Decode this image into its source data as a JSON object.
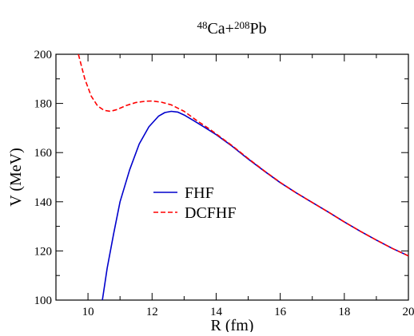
{
  "chart_data": {
    "type": "line",
    "title": {
      "parts": [
        {
          "text": "48",
          "sup": true
        },
        {
          "text": "Ca+",
          "sup": false
        },
        {
          "text": "208",
          "sup": true
        },
        {
          "text": "Pb",
          "sup": false
        }
      ]
    },
    "xlabel": "R (fm)",
    "ylabel": "V (MeV)",
    "xlim": [
      9,
      20
    ],
    "ylim": [
      100,
      200
    ],
    "x_ticks": [
      10,
      12,
      14,
      16,
      18,
      20
    ],
    "x_tick_labels": [
      "10",
      "12",
      "14",
      "16",
      "18",
      "20"
    ],
    "x_minor_ticks": [
      9,
      11,
      13,
      15,
      17,
      19
    ],
    "y_ticks": [
      100,
      120,
      140,
      160,
      180,
      200
    ],
    "y_tick_labels": [
      "100",
      "120",
      "140",
      "160",
      "180",
      "200"
    ],
    "y_minor_ticks": [
      110,
      130,
      150,
      170,
      190
    ],
    "grid": false,
    "legend": {
      "placement": "center-left"
    },
    "series": [
      {
        "name": "FHF",
        "color": "#0000cc",
        "dash": "solid",
        "x": [
          10.45,
          10.6,
          10.8,
          11.0,
          11.3,
          11.6,
          11.9,
          12.2,
          12.4,
          12.6,
          12.8,
          13.0,
          13.3,
          13.6,
          14.0,
          14.5,
          15.0,
          15.5,
          16.0,
          16.5,
          17.0,
          17.5,
          18.0,
          18.5,
          19.0,
          19.5,
          20.0
        ],
        "y": [
          100.0,
          113.0,
          127.0,
          140.0,
          153.0,
          163.5,
          170.5,
          174.8,
          176.3,
          176.8,
          176.5,
          175.3,
          173.0,
          170.6,
          167.3,
          162.6,
          157.4,
          152.5,
          147.8,
          143.6,
          139.7,
          135.8,
          131.8,
          128.0,
          124.4,
          121.0,
          118.0
        ]
      },
      {
        "name": "DCFHF",
        "color": "#ff0000",
        "dash": "dashed",
        "x": [
          9.7,
          9.9,
          10.1,
          10.3,
          10.5,
          10.7,
          10.9,
          11.2,
          11.5,
          11.8,
          12.0,
          12.3,
          12.6,
          13.0,
          13.4,
          13.8,
          14.0,
          14.5,
          15.0,
          15.5,
          16.0,
          16.5,
          17.0,
          17.5,
          18.0,
          18.5,
          19.0,
          19.5,
          20.0
        ],
        "y": [
          200.0,
          190.0,
          183.0,
          179.0,
          177.2,
          176.8,
          177.5,
          179.2,
          180.4,
          180.9,
          181.0,
          180.5,
          179.4,
          176.8,
          173.0,
          169.5,
          167.6,
          162.8,
          157.6,
          152.6,
          147.9,
          143.6,
          139.7,
          135.8,
          131.8,
          128.0,
          124.4,
          121.0,
          118.0
        ]
      }
    ]
  }
}
